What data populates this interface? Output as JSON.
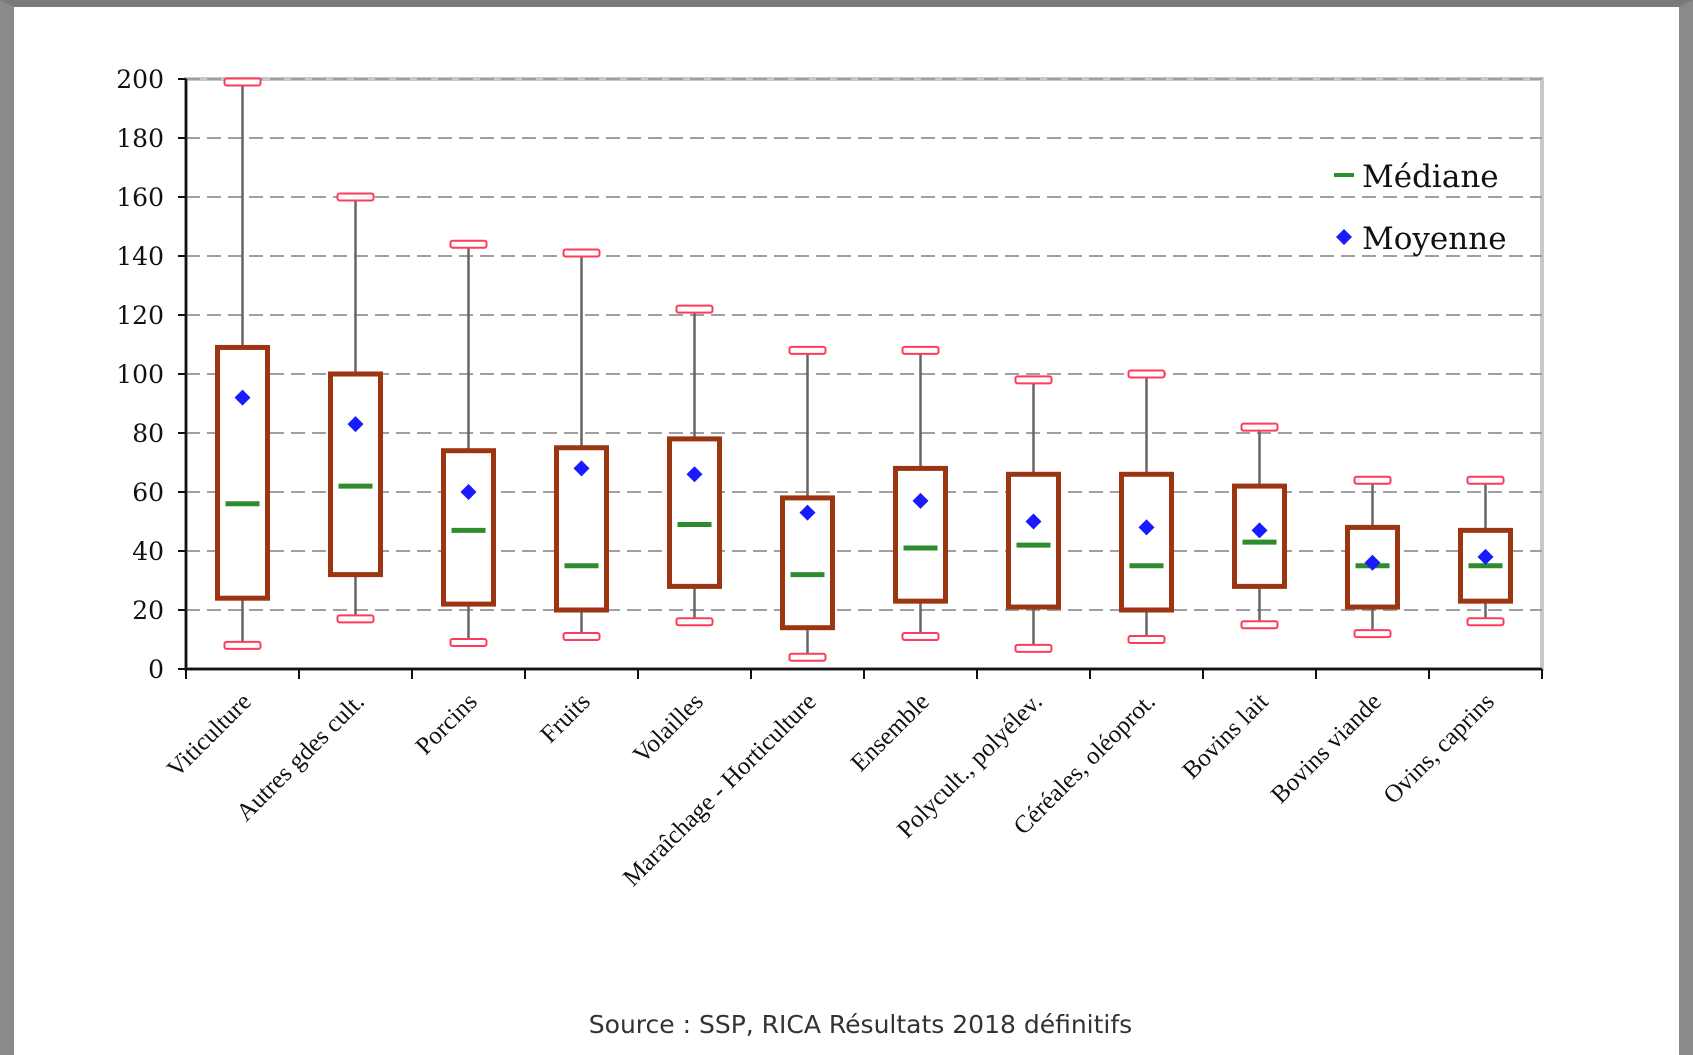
{
  "chart_data": {
    "type": "boxplot",
    "title": "",
    "xlabel": "",
    "ylabel": "",
    "ylim": [
      0,
      200
    ],
    "yticks": [
      0,
      20,
      40,
      60,
      80,
      100,
      120,
      140,
      160,
      180,
      200
    ],
    "grid": "horizontal dashed",
    "legend_position": "top-right",
    "legend": [
      {
        "label": "Médiane",
        "marker": "dash",
        "color": "#2e8b2e"
      },
      {
        "label": "Moyenne",
        "marker": "diamond",
        "color": "#1a1aff"
      }
    ],
    "colors": {
      "box": "#9c3512",
      "whisker": "#666666",
      "whisker_cap": "#ff3b5c",
      "median": "#2e8b2e",
      "mean": "#1a1aff",
      "grid": "#a0a0a0",
      "plot_border": "#c8c8c8"
    },
    "categories": [
      "Viticulture",
      "Autres gdes cult.",
      "Porcins",
      "Fruits",
      "Volailles",
      "Maraîchage - Horticulture",
      "Ensemble",
      "Polycult., polyélev.",
      "Céréales, oléoprot.",
      "Bovins lait",
      "Bovins viande",
      "Ovins, caprins"
    ],
    "series": [
      {
        "category": "Viticulture",
        "min": 8,
        "q1": 24,
        "median": 56,
        "q3": 109,
        "max": 199,
        "mean": 92
      },
      {
        "category": "Autres gdes cult.",
        "min": 17,
        "q1": 32,
        "median": 62,
        "q3": 100,
        "max": 160,
        "mean": 83
      },
      {
        "category": "Porcins",
        "min": 9,
        "q1": 22,
        "median": 47,
        "q3": 74,
        "max": 144,
        "mean": 60
      },
      {
        "category": "Fruits",
        "min": 11,
        "q1": 20,
        "median": 35,
        "q3": 75,
        "max": 141,
        "mean": 68
      },
      {
        "category": "Volailles",
        "min": 16,
        "q1": 28,
        "median": 49,
        "q3": 78,
        "max": 122,
        "mean": 66
      },
      {
        "category": "Maraîchage - Horticulture",
        "min": 4,
        "q1": 14,
        "median": 32,
        "q3": 58,
        "max": 108,
        "mean": 53
      },
      {
        "category": "Ensemble",
        "min": 11,
        "q1": 23,
        "median": 41,
        "q3": 68,
        "max": 108,
        "mean": 57
      },
      {
        "category": "Polycult., polyélev.",
        "min": 7,
        "q1": 21,
        "median": 42,
        "q3": 66,
        "max": 98,
        "mean": 50
      },
      {
        "category": "Céréales, oléoprot.",
        "min": 10,
        "q1": 20,
        "median": 35,
        "q3": 66,
        "max": 100,
        "mean": 48
      },
      {
        "category": "Bovins lait",
        "min": 15,
        "q1": 28,
        "median": 43,
        "q3": 62,
        "max": 82,
        "mean": 47
      },
      {
        "category": "Bovins viande",
        "min": 12,
        "q1": 21,
        "median": 35,
        "q3": 48,
        "max": 64,
        "mean": 36
      },
      {
        "category": "Ovins, caprins",
        "min": 16,
        "q1": 23,
        "median": 35,
        "q3": 47,
        "max": 64,
        "mean": 38
      }
    ]
  },
  "source": "Source : SSP, RICA Résultats 2018 définitifs"
}
